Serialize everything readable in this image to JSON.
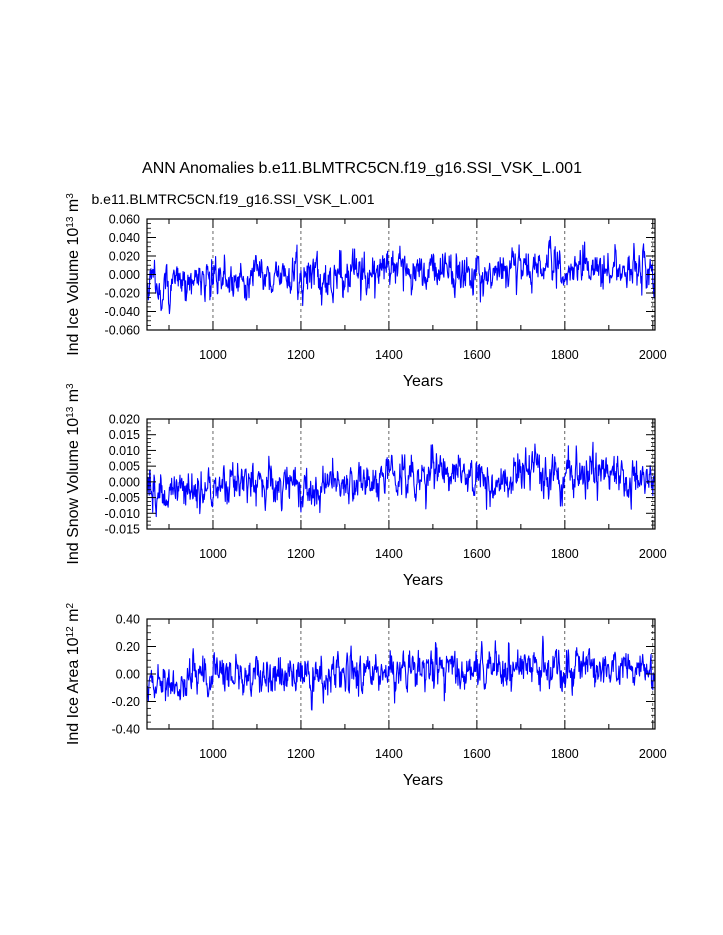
{
  "title": "ANN Anomalies b.e11.BLMTRC5CN.f19_g16.SSI_VSK_L.001",
  "series_label": "b.e11.BLMTRC5CN.f19_g16.SSI_VSK_L.001",
  "series_color": "#0000ff",
  "chart_data": [
    {
      "type": "line",
      "ylabel": "Ind Ice Volume 10^13 m^3",
      "xlabel": "Years",
      "xlim": [
        850,
        2005
      ],
      "ylim": [
        -0.06,
        0.06
      ],
      "xticks": [
        1000,
        1200,
        1400,
        1600,
        1800,
        2000
      ],
      "yticks": [
        -0.06,
        -0.04,
        -0.02,
        0.0,
        0.02,
        0.04,
        0.06
      ],
      "ytick_labels": [
        "-0.060",
        "-0.040",
        "-0.020",
        "0.000",
        "0.020",
        "0.040",
        "0.060"
      ],
      "grid": "dashed vertical at major x ticks",
      "amplitude": 0.011,
      "x": [
        850,
        900,
        950,
        1000,
        1050,
        1100,
        1150,
        1200,
        1250,
        1300,
        1350,
        1400,
        1450,
        1500,
        1550,
        1600,
        1650,
        1700,
        1750,
        1800,
        1850,
        1900,
        1950,
        2005
      ],
      "y": [
        -0.01,
        -0.012,
        -0.008,
        -0.005,
        -0.004,
        0.0,
        -0.002,
        -0.003,
        -0.004,
        0.0,
        0.002,
        0.004,
        0.003,
        0.006,
        0.004,
        0.006,
        0.003,
        0.008,
        0.006,
        0.004,
        0.006,
        0.005,
        0.004,
        0.004
      ]
    },
    {
      "type": "line",
      "ylabel": "Ind Snow Volume 10^13 m^3",
      "xlabel": "Years",
      "xlim": [
        850,
        2005
      ],
      "ylim": [
        -0.015,
        0.02
      ],
      "xticks": [
        1000,
        1200,
        1400,
        1600,
        1800,
        2000
      ],
      "yticks": [
        -0.015,
        -0.01,
        -0.005,
        0.0,
        0.005,
        0.01,
        0.015,
        0.02
      ],
      "ytick_labels": [
        "-0.015",
        "-0.010",
        "-0.005",
        "0.000",
        "0.005",
        "0.010",
        "0.015",
        "0.020"
      ],
      "grid": "dashed vertical at major x ticks",
      "amplitude": 0.0033,
      "x": [
        850,
        900,
        950,
        1000,
        1050,
        1100,
        1150,
        1200,
        1250,
        1300,
        1350,
        1400,
        1450,
        1500,
        1550,
        1600,
        1650,
        1700,
        1750,
        1800,
        1850,
        1900,
        1950,
        2005
      ],
      "y": [
        -0.003,
        -0.0035,
        -0.002,
        -0.0015,
        -0.001,
        0.0,
        -0.0005,
        -0.001,
        -0.0015,
        0.0,
        0.0005,
        0.001,
        0.001,
        0.002,
        0.0015,
        0.002,
        0.001,
        0.0025,
        0.002,
        0.0015,
        0.002,
        0.0015,
        0.001,
        0.001
      ]
    },
    {
      "type": "line",
      "ylabel": "Ind Ice Area 10^12 m^2",
      "xlabel": "Years",
      "xlim": [
        850,
        2005
      ],
      "ylim": [
        -0.4,
        0.4
      ],
      "xticks": [
        1000,
        1200,
        1400,
        1600,
        1800,
        2000
      ],
      "yticks": [
        -0.4,
        -0.2,
        0.0,
        0.2,
        0.4
      ],
      "ytick_labels": [
        "-0.40",
        "-0.20",
        "0.00",
        "0.20",
        "0.40"
      ],
      "grid": "dashed vertical at major x ticks",
      "amplitude": 0.075,
      "x": [
        850,
        900,
        950,
        1000,
        1050,
        1100,
        1150,
        1200,
        1250,
        1300,
        1350,
        1400,
        1450,
        1500,
        1550,
        1600,
        1650,
        1700,
        1750,
        1800,
        1850,
        1900,
        1950,
        2005
      ],
      "y": [
        -0.07,
        -0.08,
        -0.05,
        -0.035,
        -0.03,
        0.0,
        -0.015,
        -0.02,
        -0.03,
        0.0,
        0.015,
        0.03,
        0.02,
        0.045,
        0.03,
        0.045,
        0.02,
        0.06,
        0.045,
        0.03,
        0.045,
        0.035,
        0.03,
        0.03
      ]
    }
  ]
}
